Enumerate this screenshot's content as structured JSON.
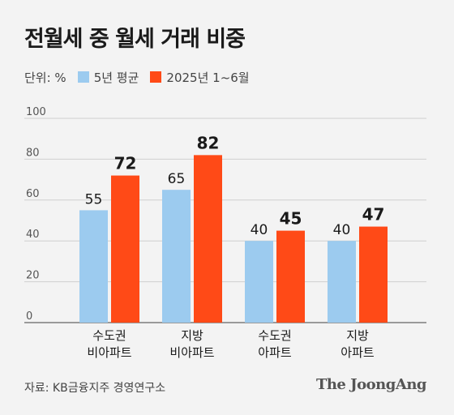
{
  "title": "전월세 중 월세 거래 비중",
  "legend": {
    "unit": "단위: %",
    "items": [
      {
        "label": "5년 평균",
        "color": "#9ccbef"
      },
      {
        "label": "2025년 1~6월",
        "color": "#ff4a17"
      }
    ]
  },
  "chart_data": {
    "type": "bar",
    "categories": [
      [
        "수도권",
        "비아파트"
      ],
      [
        "지방",
        "비아파트"
      ],
      [
        "수도권",
        "아파트"
      ],
      [
        "지방",
        "아파트"
      ]
    ],
    "series": [
      {
        "name": "5년 평균",
        "color": "#9ccbef",
        "values": [
          55,
          65,
          40,
          40
        ]
      },
      {
        "name": "2025년 1~6월",
        "color": "#ff4a17",
        "values": [
          72,
          82,
          45,
          47
        ]
      }
    ],
    "ylim": [
      0,
      100
    ],
    "yticks": [
      0,
      20,
      40,
      60,
      80,
      100
    ],
    "grid": true,
    "legend_position": "top-left"
  },
  "source": "자료: KB금융지주 경영연구소",
  "brand": "The JoongAng"
}
